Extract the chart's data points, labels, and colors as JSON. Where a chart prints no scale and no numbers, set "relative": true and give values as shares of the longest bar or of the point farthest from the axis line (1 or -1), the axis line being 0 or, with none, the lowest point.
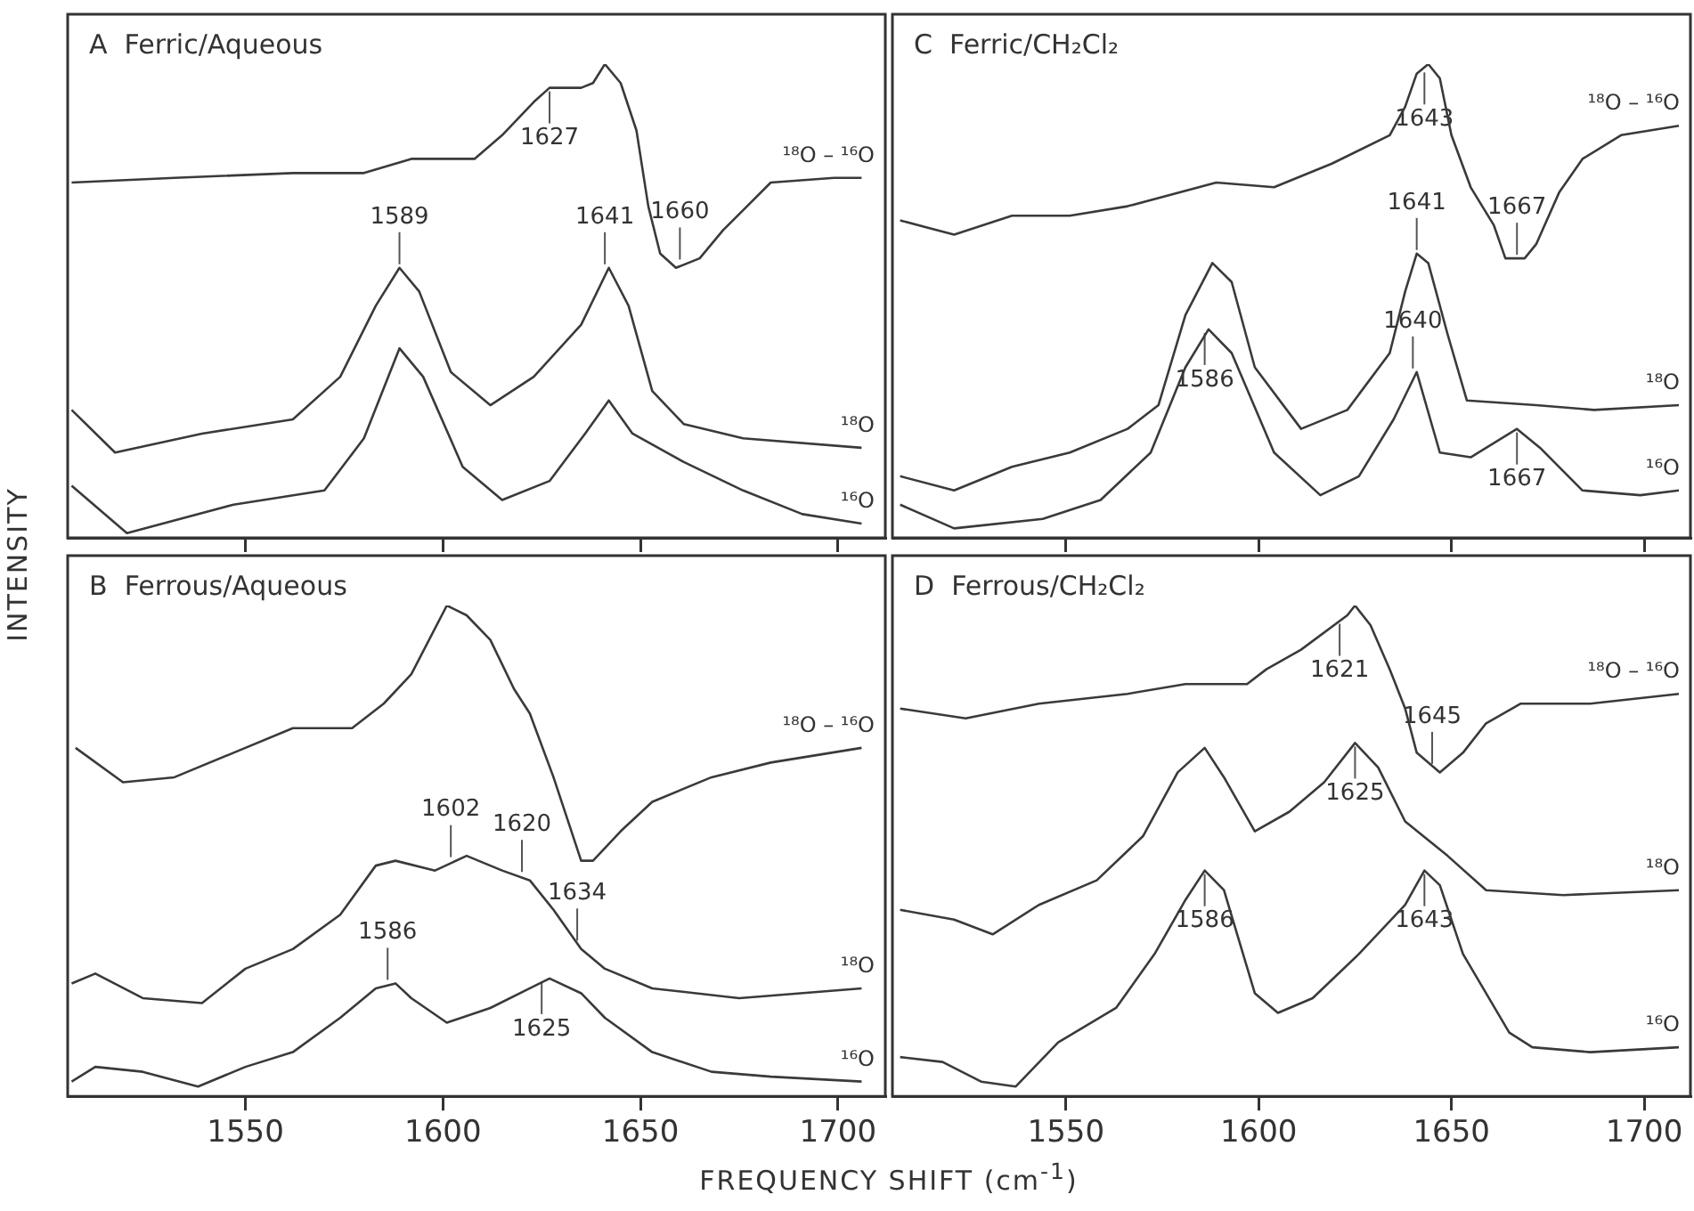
{
  "chart_data": [
    {
      "type": "line",
      "title": "A  Ferric/Aqueous",
      "ylabel": "INTENSITY",
      "relative": true,
      "tick_labels": false,
      "xlim": [
        1505,
        1712
      ],
      "xticks": [
        1550,
        1600,
        1650,
        1700
      ],
      "series": [
        {
          "name": "¹⁸O – ¹⁶O",
          "color": "#3a3a3a",
          "x": [
            1506,
            1532,
            1562,
            1580,
            1592,
            1608,
            1615,
            1623,
            1627,
            1635,
            1638,
            1641,
            1645,
            1649,
            1652,
            1655,
            1659,
            1665,
            1671,
            1677,
            1683,
            1699,
            1706
          ],
          "values": [
            0.75,
            0.76,
            0.77,
            0.77,
            0.8,
            0.8,
            0.85,
            0.92,
            0.95,
            0.95,
            0.96,
            1.0,
            0.96,
            0.86,
            0.7,
            0.6,
            0.57,
            0.59,
            0.65,
            0.7,
            0.75,
            0.76,
            0.76
          ]
        },
        {
          "name": "¹⁸O",
          "color": "#3a3a3a",
          "x": [
            1506,
            1517,
            1539,
            1562,
            1574,
            1583,
            1589,
            1594,
            1602,
            1612,
            1623,
            1635,
            1642,
            1647,
            1653,
            1661,
            1676,
            1706
          ],
          "values": [
            0.27,
            0.18,
            0.22,
            0.25,
            0.34,
            0.49,
            0.57,
            0.52,
            0.35,
            0.28,
            0.34,
            0.45,
            0.57,
            0.49,
            0.31,
            0.24,
            0.21,
            0.19
          ]
        },
        {
          "name": "¹⁶O",
          "color": "#3a3a3a",
          "x": [
            1506,
            1520,
            1547,
            1570,
            1580,
            1589,
            1595,
            1605,
            1615,
            1627,
            1636,
            1642,
            1648,
            1661,
            1676,
            1691,
            1706
          ],
          "values": [
            0.11,
            0.01,
            0.07,
            0.1,
            0.21,
            0.4,
            0.34,
            0.15,
            0.08,
            0.12,
            0.22,
            0.29,
            0.22,
            0.16,
            0.1,
            0.05,
            0.03
          ]
        }
      ],
      "annotations": [
        {
          "text": "1627",
          "x": 1627,
          "y": 0.95
        },
        {
          "text": "1641",
          "x": 1641,
          "y": 0.57
        },
        {
          "text": "1589",
          "x": 1589,
          "y": 0.57
        },
        {
          "text": "1660",
          "x": 1660,
          "y": 0.58
        }
      ]
    },
    {
      "type": "line",
      "title": "C  Ferric/CH₂Cl₂",
      "relative": true,
      "tick_labels": false,
      "xlim": [
        1505,
        1712
      ],
      "xticks": [
        1550,
        1600,
        1650,
        1700
      ],
      "series": [
        {
          "name": "¹⁸O – ¹⁶O",
          "color": "#3a3a3a",
          "x": [
            1507,
            1521,
            1536,
            1551,
            1566,
            1589,
            1604,
            1619,
            1634,
            1638,
            1641,
            1644,
            1647,
            1650,
            1655,
            1661,
            1664,
            1669,
            1672,
            1678,
            1684,
            1694,
            1709
          ],
          "values": [
            0.67,
            0.64,
            0.68,
            0.68,
            0.7,
            0.75,
            0.74,
            0.79,
            0.85,
            0.91,
            0.98,
            1.0,
            0.97,
            0.85,
            0.74,
            0.66,
            0.59,
            0.59,
            0.62,
            0.73,
            0.8,
            0.85,
            0.87
          ]
        },
        {
          "name": "¹⁸O",
          "color": "#3a3a3a",
          "x": [
            1507,
            1521,
            1536,
            1551,
            1566,
            1574,
            1581,
            1588,
            1593,
            1599,
            1611,
            1623,
            1634,
            1638,
            1641,
            1644,
            1649,
            1654,
            1672,
            1687,
            1709
          ],
          "values": [
            0.13,
            0.1,
            0.15,
            0.18,
            0.23,
            0.28,
            0.47,
            0.58,
            0.54,
            0.36,
            0.23,
            0.27,
            0.39,
            0.52,
            0.6,
            0.58,
            0.43,
            0.29,
            0.28,
            0.27,
            0.28
          ]
        },
        {
          "name": "¹⁶O",
          "color": "#3a3a3a",
          "x": [
            1507,
            1521,
            1544,
            1559,
            1572,
            1581,
            1587,
            1593,
            1604,
            1616,
            1626,
            1635,
            1641,
            1647,
            1655,
            1667,
            1673,
            1684,
            1699,
            1709
          ],
          "values": [
            0.07,
            0.02,
            0.04,
            0.08,
            0.18,
            0.36,
            0.44,
            0.39,
            0.18,
            0.09,
            0.13,
            0.25,
            0.35,
            0.18,
            0.17,
            0.23,
            0.19,
            0.1,
            0.09,
            0.1
          ]
        }
      ],
      "annotations": [
        {
          "text": "1643",
          "x": 1643,
          "y": 0.99
        },
        {
          "text": "1667",
          "x": 1667,
          "y": 0.59
        },
        {
          "text": "1641",
          "x": 1641,
          "y": 0.6
        },
        {
          "text": "1586",
          "x": 1586,
          "y": 0.44
        },
        {
          "text": "1640",
          "x": 1640,
          "y": 0.35
        },
        {
          "text": "1667",
          "x": 1667,
          "y": 0.23
        }
      ]
    },
    {
      "type": "line",
      "title": "B  Ferrous/Aqueous",
      "xlabel": "FREQUENCY SHIFT (cm$^{-1}$)",
      "relative": true,
      "tick_labels": "x",
      "xlim": [
        1505,
        1712
      ],
      "xticks": [
        1550,
        1600,
        1650,
        1700
      ],
      "series": [
        {
          "name": "¹⁸O – ¹⁶O",
          "color": "#3a3a3a",
          "x": [
            1507,
            1519,
            1532,
            1547,
            1562,
            1577,
            1585,
            1592,
            1601,
            1606,
            1612,
            1618,
            1622,
            1628,
            1635,
            1638,
            1645,
            1653,
            1668,
            1683,
            1706
          ],
          "values": [
            0.71,
            0.64,
            0.65,
            0.7,
            0.75,
            0.75,
            0.8,
            0.86,
            1.0,
            0.98,
            0.93,
            0.83,
            0.78,
            0.65,
            0.48,
            0.48,
            0.54,
            0.6,
            0.65,
            0.68,
            0.71
          ]
        },
        {
          "name": "¹⁸O",
          "color": "#3a3a3a",
          "x": [
            1506,
            1512,
            1524,
            1539,
            1550,
            1562,
            1574,
            1583,
            1588,
            1598,
            1606,
            1615,
            1622,
            1628,
            1635,
            1641,
            1653,
            1675,
            1706
          ],
          "values": [
            0.23,
            0.25,
            0.2,
            0.19,
            0.26,
            0.3,
            0.37,
            0.47,
            0.48,
            0.46,
            0.49,
            0.46,
            0.44,
            0.38,
            0.3,
            0.26,
            0.22,
            0.2,
            0.22
          ]
        },
        {
          "name": "¹⁶O",
          "color": "#3a3a3a",
          "x": [
            1506,
            1512,
            1524,
            1538,
            1550,
            1562,
            1574,
            1583,
            1588,
            1592,
            1601,
            1612,
            1622,
            1627,
            1635,
            1641,
            1653,
            1668,
            1683,
            1706
          ],
          "values": [
            0.03,
            0.06,
            0.05,
            0.02,
            0.06,
            0.09,
            0.16,
            0.22,
            0.23,
            0.2,
            0.15,
            0.18,
            0.22,
            0.24,
            0.21,
            0.16,
            0.09,
            0.05,
            0.04,
            0.03
          ]
        }
      ],
      "annotations": [
        {
          "text": "1602",
          "x": 1602,
          "y": 0.48
        },
        {
          "text": "1620",
          "x": 1620,
          "y": 0.45
        },
        {
          "text": "1634",
          "x": 1634,
          "y": 0.31
        },
        {
          "text": "1586",
          "x": 1586,
          "y": 0.23
        },
        {
          "text": "1625",
          "x": 1625,
          "y": 0.24
        }
      ]
    },
    {
      "type": "line",
      "title": "D  Ferrous/CH₂Cl₂",
      "relative": true,
      "tick_labels": "x",
      "xlim": [
        1505,
        1712
      ],
      "xticks": [
        1550,
        1600,
        1650,
        1700
      ],
      "series": [
        {
          "name": "¹⁸O – ¹⁶O",
          "color": "#3a3a3a",
          "x": [
            1507,
            1524,
            1543,
            1566,
            1581,
            1597,
            1602,
            1611,
            1623,
            1625,
            1629,
            1634,
            1638,
            1641,
            1647,
            1653,
            1659,
            1668,
            1686,
            1709
          ],
          "values": [
            0.79,
            0.77,
            0.8,
            0.82,
            0.84,
            0.84,
            0.87,
            0.91,
            0.98,
            1.0,
            0.96,
            0.87,
            0.79,
            0.7,
            0.66,
            0.7,
            0.76,
            0.8,
            0.8,
            0.82
          ]
        },
        {
          "name": "¹⁸O",
          "color": "#3a3a3a",
          "x": [
            1507,
            1521,
            1531,
            1543,
            1558,
            1570,
            1579,
            1586,
            1591,
            1599,
            1608,
            1617,
            1625,
            1631,
            1638,
            1649,
            1659,
            1679,
            1709
          ],
          "values": [
            0.38,
            0.36,
            0.33,
            0.39,
            0.44,
            0.53,
            0.66,
            0.71,
            0.65,
            0.54,
            0.58,
            0.64,
            0.72,
            0.67,
            0.56,
            0.49,
            0.42,
            0.41,
            0.42
          ]
        },
        {
          "name": "¹⁶O",
          "color": "#3a3a3a",
          "x": [
            1507,
            1518,
            1528,
            1537,
            1548,
            1563,
            1573,
            1581,
            1586,
            1591,
            1599,
            1605,
            1614,
            1626,
            1638,
            1643,
            1647,
            1653,
            1665,
            1671,
            1686,
            1709
          ],
          "values": [
            0.08,
            0.07,
            0.03,
            0.02,
            0.11,
            0.18,
            0.29,
            0.4,
            0.46,
            0.42,
            0.21,
            0.17,
            0.2,
            0.29,
            0.39,
            0.46,
            0.43,
            0.29,
            0.13,
            0.1,
            0.09,
            0.1
          ]
        }
      ],
      "annotations": [
        {
          "text": "1621",
          "x": 1621,
          "y": 0.97
        },
        {
          "text": "1645",
          "x": 1645,
          "y": 0.67
        },
        {
          "text": "1586",
          "x": 1586,
          "y": 0.46
        },
        {
          "text": "1625",
          "x": 1625,
          "y": 0.72
        },
        {
          "text": "1643",
          "x": 1643,
          "y": 0.46
        }
      ]
    }
  ]
}
